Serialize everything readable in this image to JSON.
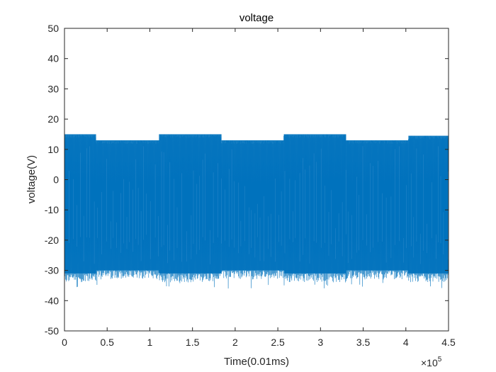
{
  "chart_data": {
    "type": "line",
    "title": "voltage",
    "xlabel": "Time(0.01ms)",
    "ylabel": "voltage(V)",
    "x_exponent_label": "×10",
    "x_exponent_power": "5",
    "xlim": [
      0,
      4.5
    ],
    "ylim": [
      -50,
      50
    ],
    "x_ticks": [
      0,
      0.5,
      1,
      1.5,
      2,
      2.5,
      3,
      3.5,
      4,
      4.5
    ],
    "x_tick_labels": [
      "0",
      "0.5",
      "1",
      "1.5",
      "2",
      "2.5",
      "3",
      "3.5",
      "4",
      "4.5"
    ],
    "y_ticks": [
      -50,
      -40,
      -30,
      -20,
      -10,
      0,
      10,
      20,
      30,
      40,
      50
    ],
    "y_tick_labels": [
      "-50",
      "-40",
      "-30",
      "-20",
      "-10",
      "0",
      "10",
      "20",
      "30",
      "40",
      "50"
    ],
    "grid": false,
    "series": [
      {
        "name": "voltage",
        "color": "#0072BD",
        "x_scale_note": "x in units of 1e5 samples (0.01 ms each)",
        "segments": [
          {
            "x_start": 0.0,
            "x_end": 0.37,
            "upper": 15,
            "lower": -31
          },
          {
            "x_start": 0.37,
            "x_end": 1.11,
            "upper": 13,
            "lower": -30
          },
          {
            "x_start": 1.11,
            "x_end": 1.84,
            "upper": 15,
            "lower": -31
          },
          {
            "x_start": 1.84,
            "x_end": 2.57,
            "upper": 13,
            "lower": -30
          },
          {
            "x_start": 2.57,
            "x_end": 3.3,
            "upper": 15,
            "lower": -31
          },
          {
            "x_start": 3.3,
            "x_end": 4.03,
            "upper": 13,
            "lower": -30
          },
          {
            "x_start": 4.03,
            "x_end": 4.5,
            "upper": 14.5,
            "lower": -31
          }
        ],
        "min_spike": -36,
        "max_value": 15
      }
    ]
  }
}
